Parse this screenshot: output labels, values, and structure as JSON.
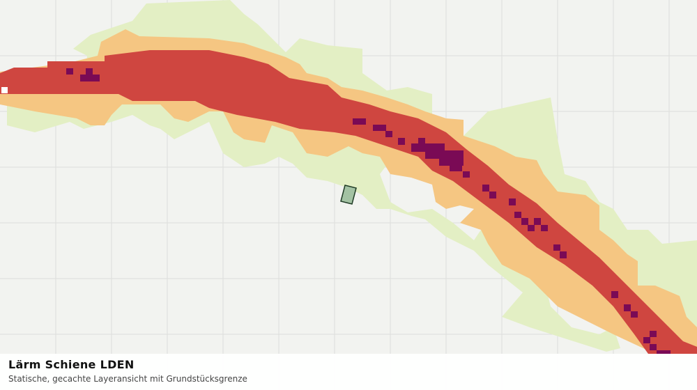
{
  "panel": {
    "title": "Lärm Schiene LDEN",
    "subtitle": "Statische, gecachte Layeransicht mit Grundstücksgrenze"
  }
}
